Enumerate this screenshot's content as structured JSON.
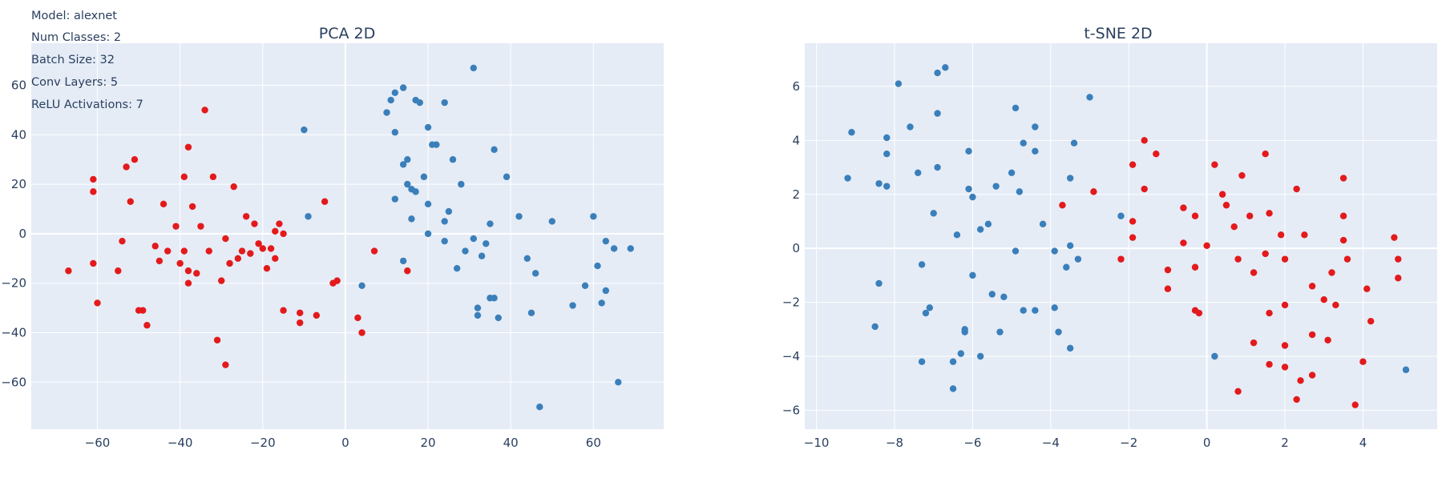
{
  "model_info": [
    "Model: alexnet",
    "Num Classes: 2",
    "Batch Size: 32",
    "Conv Layers: 5",
    "ReLU Activations: 7"
  ],
  "colors": {
    "class_red": "#e31a1c",
    "class_blue": "#3a7fba",
    "plot_bg": "#e5ecf6",
    "grid": "#ffffff",
    "text": "#2a3f5f"
  },
  "chart_data": [
    {
      "type": "scatter",
      "title": "PCA 2D",
      "xlabel": "",
      "ylabel": "",
      "xlim": [
        -76,
        77
      ],
      "ylim": [
        -79,
        77
      ],
      "xticks": [
        -60,
        -40,
        -20,
        0,
        20,
        40,
        60
      ],
      "yticks": [
        -60,
        -40,
        -20,
        0,
        20,
        40,
        60
      ],
      "grid": true,
      "legend": "none",
      "series": [
        {
          "color": "#e31a1c",
          "points": [
            [
              -67,
              -15
            ],
            [
              -61,
              17
            ],
            [
              -61,
              22
            ],
            [
              -61,
              -12
            ],
            [
              -60,
              -28
            ],
            [
              -55,
              -15
            ],
            [
              -54,
              -3
            ],
            [
              -53,
              27
            ],
            [
              -52,
              13
            ],
            [
              -51,
              30
            ],
            [
              -50,
              -31
            ],
            [
              -49,
              -31
            ],
            [
              -48,
              -37
            ],
            [
              -46,
              -5
            ],
            [
              -45,
              -11
            ],
            [
              -44,
              12
            ],
            [
              -43,
              -7
            ],
            [
              -41,
              3
            ],
            [
              -40,
              -12
            ],
            [
              -39,
              23
            ],
            [
              -39,
              -7
            ],
            [
              -38,
              -15
            ],
            [
              -38,
              -20
            ],
            [
              -38,
              35
            ],
            [
              -37,
              11
            ],
            [
              -36,
              -16
            ],
            [
              -35,
              3
            ],
            [
              -34,
              50
            ],
            [
              -33,
              -7
            ],
            [
              -32,
              23
            ],
            [
              -31,
              -43
            ],
            [
              -30,
              -19
            ],
            [
              -29,
              -2
            ],
            [
              -29,
              -53
            ],
            [
              -28,
              -12
            ],
            [
              -27,
              19
            ],
            [
              -26,
              -10
            ],
            [
              -25,
              -7
            ],
            [
              -24,
              7
            ],
            [
              -23,
              -8
            ],
            [
              -22,
              4
            ],
            [
              -21,
              -4
            ],
            [
              -20,
              -6
            ],
            [
              -19,
              -14
            ],
            [
              -18,
              -6
            ],
            [
              -17,
              1
            ],
            [
              -17,
              -10
            ],
            [
              -16,
              4
            ],
            [
              -15,
              0
            ],
            [
              -15,
              -31
            ],
            [
              -11,
              -36
            ],
            [
              -11,
              -32
            ],
            [
              -7,
              -33
            ],
            [
              -5,
              13
            ],
            [
              -3,
              -20
            ],
            [
              -2,
              -19
            ],
            [
              3,
              -34
            ],
            [
              4,
              -40
            ],
            [
              7,
              -7
            ],
            [
              15,
              -15
            ]
          ]
        },
        {
          "color": "#3a7fba",
          "points": [
            [
              -10,
              42
            ],
            [
              -9,
              7
            ],
            [
              4,
              -21
            ],
            [
              10,
              49
            ],
            [
              11,
              54
            ],
            [
              12,
              57
            ],
            [
              12,
              41
            ],
            [
              12,
              14
            ],
            [
              14,
              59
            ],
            [
              14,
              28
            ],
            [
              14,
              -11
            ],
            [
              15,
              30
            ],
            [
              15,
              20
            ],
            [
              16,
              18
            ],
            [
              16,
              6
            ],
            [
              17,
              54
            ],
            [
              17,
              17
            ],
            [
              18,
              53
            ],
            [
              19,
              23
            ],
            [
              20,
              12
            ],
            [
              20,
              43
            ],
            [
              20,
              0
            ],
            [
              21,
              36
            ],
            [
              22,
              36
            ],
            [
              24,
              53
            ],
            [
              24,
              -3
            ],
            [
              24,
              5
            ],
            [
              25,
              9
            ],
            [
              26,
              30
            ],
            [
              27,
              -14
            ],
            [
              28,
              20
            ],
            [
              29,
              -7
            ],
            [
              31,
              -2
            ],
            [
              31,
              67
            ],
            [
              32,
              -30
            ],
            [
              32,
              -33
            ],
            [
              33,
              -9
            ],
            [
              34,
              -4
            ],
            [
              35,
              4
            ],
            [
              35,
              -26
            ],
            [
              36,
              34
            ],
            [
              36,
              -26
            ],
            [
              37,
              -34
            ],
            [
              39,
              23
            ],
            [
              42,
              7
            ],
            [
              44,
              -10
            ],
            [
              45,
              -32
            ],
            [
              46,
              -16
            ],
            [
              47,
              -70
            ],
            [
              50,
              5
            ],
            [
              55,
              -29
            ],
            [
              58,
              -21
            ],
            [
              60,
              7
            ],
            [
              61,
              -13
            ],
            [
              62,
              -28
            ],
            [
              63,
              -3
            ],
            [
              63,
              -23
            ],
            [
              65,
              -6
            ],
            [
              66,
              -60
            ],
            [
              69,
              -6
            ]
          ]
        }
      ]
    },
    {
      "type": "scatter",
      "title": "t-SNE 2D",
      "xlabel": "",
      "ylabel": "",
      "xlim": [
        -10.3,
        5.9
      ],
      "ylim": [
        -6.7,
        7.6
      ],
      "xticks": [
        -10,
        -8,
        -6,
        -4,
        -2,
        0,
        2,
        4
      ],
      "yticks": [
        -6,
        -4,
        -2,
        0,
        2,
        4,
        6
      ],
      "grid": true,
      "legend": "none",
      "series": [
        {
          "color": "#3a7fba",
          "points": [
            [
              -9.2,
              2.6
            ],
            [
              -9.1,
              4.3
            ],
            [
              -8.5,
              -2.9
            ],
            [
              -8.4,
              2.4
            ],
            [
              -8.4,
              -1.3
            ],
            [
              -8.2,
              4.1
            ],
            [
              -8.2,
              3.5
            ],
            [
              -8.2,
              2.3
            ],
            [
              -7.9,
              6.1
            ],
            [
              -7.6,
              4.5
            ],
            [
              -7.4,
              2.8
            ],
            [
              -7.3,
              -0.6
            ],
            [
              -7.3,
              -4.2
            ],
            [
              -7.2,
              -2.4
            ],
            [
              -7.1,
              -2.2
            ],
            [
              -7.0,
              1.3
            ],
            [
              -6.9,
              6.5
            ],
            [
              -6.9,
              5.0
            ],
            [
              -6.9,
              3.0
            ],
            [
              -6.7,
              6.7
            ],
            [
              -6.5,
              -4.2
            ],
            [
              -6.5,
              -5.2
            ],
            [
              -6.4,
              0.5
            ],
            [
              -6.3,
              -3.9
            ],
            [
              -6.2,
              -3.0
            ],
            [
              -6.2,
              -3.1
            ],
            [
              -6.1,
              3.6
            ],
            [
              -6.1,
              2.2
            ],
            [
              -6.0,
              1.9
            ],
            [
              -6.0,
              -1.0
            ],
            [
              -5.8,
              0.7
            ],
            [
              -5.8,
              -4.0
            ],
            [
              -5.6,
              0.9
            ],
            [
              -5.5,
              -1.7
            ],
            [
              -5.4,
              2.3
            ],
            [
              -5.3,
              -3.1
            ],
            [
              -5.2,
              -1.8
            ],
            [
              -5.0,
              2.8
            ],
            [
              -4.9,
              5.2
            ],
            [
              -4.9,
              -0.1
            ],
            [
              -4.8,
              2.1
            ],
            [
              -4.7,
              3.9
            ],
            [
              -4.7,
              -2.3
            ],
            [
              -4.4,
              3.6
            ],
            [
              -4.4,
              4.5
            ],
            [
              -4.4,
              -2.3
            ],
            [
              -4.2,
              0.9
            ],
            [
              -3.9,
              -2.2
            ],
            [
              -3.9,
              -0.1
            ],
            [
              -3.8,
              -3.1
            ],
            [
              -3.6,
              -0.7
            ],
            [
              -3.5,
              0.1
            ],
            [
              -3.5,
              2.6
            ],
            [
              -3.5,
              -3.7
            ],
            [
              -3.4,
              3.9
            ],
            [
              -3.3,
              -0.4
            ],
            [
              -3.0,
              5.6
            ],
            [
              -2.2,
              1.2
            ],
            [
              0.2,
              -4.0
            ],
            [
              5.1,
              -4.5
            ]
          ]
        },
        {
          "color": "#e31a1c",
          "points": [
            [
              -3.7,
              1.6
            ],
            [
              -2.9,
              2.1
            ],
            [
              -2.2,
              -0.4
            ],
            [
              -1.9,
              3.1
            ],
            [
              -1.9,
              1.0
            ],
            [
              -1.9,
              0.4
            ],
            [
              -1.6,
              4.0
            ],
            [
              -1.6,
              2.2
            ],
            [
              -1.3,
              3.5
            ],
            [
              -1.0,
              -0.8
            ],
            [
              -1.0,
              -1.5
            ],
            [
              -0.6,
              1.5
            ],
            [
              -0.6,
              0.2
            ],
            [
              -0.3,
              1.2
            ],
            [
              -0.3,
              -0.7
            ],
            [
              -0.3,
              -2.3
            ],
            [
              -0.2,
              -2.4
            ],
            [
              0.0,
              0.1
            ],
            [
              0.2,
              3.1
            ],
            [
              0.4,
              2.0
            ],
            [
              0.5,
              1.6
            ],
            [
              0.7,
              0.8
            ],
            [
              0.8,
              -0.4
            ],
            [
              0.8,
              -5.3
            ],
            [
              0.9,
              2.7
            ],
            [
              1.1,
              1.2
            ],
            [
              1.2,
              -0.9
            ],
            [
              1.2,
              -3.5
            ],
            [
              1.5,
              3.5
            ],
            [
              1.5,
              -0.2
            ],
            [
              1.6,
              1.3
            ],
            [
              1.6,
              -2.4
            ],
            [
              1.6,
              -4.3
            ],
            [
              1.9,
              0.5
            ],
            [
              2.0,
              -0.4
            ],
            [
              2.0,
              -2.1
            ],
            [
              2.0,
              -3.6
            ],
            [
              2.0,
              -4.4
            ],
            [
              2.3,
              2.2
            ],
            [
              2.3,
              -5.6
            ],
            [
              2.4,
              -4.9
            ],
            [
              2.5,
              0.5
            ],
            [
              2.7,
              -1.4
            ],
            [
              2.7,
              -3.2
            ],
            [
              2.7,
              -4.7
            ],
            [
              3.0,
              -1.9
            ],
            [
              3.1,
              -3.4
            ],
            [
              3.2,
              -0.9
            ],
            [
              3.3,
              -2.1
            ],
            [
              3.5,
              2.6
            ],
            [
              3.5,
              1.2
            ],
            [
              3.5,
              0.3
            ],
            [
              3.6,
              -0.4
            ],
            [
              3.8,
              -5.8
            ],
            [
              4.0,
              -4.2
            ],
            [
              4.1,
              -1.5
            ],
            [
              4.2,
              -2.7
            ],
            [
              4.8,
              0.4
            ],
            [
              4.9,
              -0.4
            ],
            [
              4.9,
              -1.1
            ]
          ]
        }
      ]
    }
  ]
}
